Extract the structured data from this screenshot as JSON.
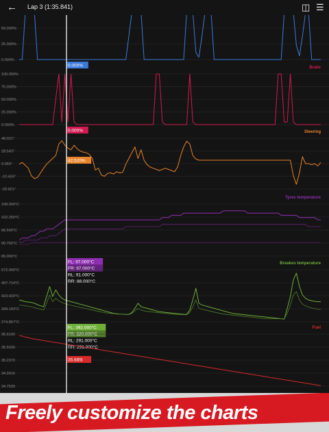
{
  "header": {
    "back_icon": "arrow-left-icon",
    "title": "Lap 3 (1:35.841)",
    "icons": [
      "car-compare-icon",
      "tune-icon"
    ]
  },
  "banner": {
    "text": "Freely customize the charts"
  },
  "colors": {
    "throttle": "#3b7ad8",
    "brake": "#d11a52",
    "steering": "#e8832a",
    "tyres": "#8e2fb0",
    "brakes_temp": "#6fae3a",
    "fuel": "#d62a2a"
  },
  "chart_data": [
    {
      "type": "line",
      "title": "",
      "series": [
        {
          "name": "",
          "values": [
            0,
            0,
            100,
            100,
            100,
            100,
            0,
            0,
            0,
            0,
            0,
            0,
            0,
            0,
            0,
            0,
            0,
            0,
            0,
            0,
            0,
            0,
            0,
            0,
            0,
            0,
            0,
            0,
            0,
            0,
            0,
            0,
            0,
            0,
            0,
            0,
            50,
            100,
            100,
            100,
            100,
            0,
            0,
            0,
            0,
            0,
            0,
            0,
            0,
            0,
            0,
            0,
            0,
            0,
            0,
            100,
            100,
            100,
            15,
            5,
            50,
            100,
            100,
            100,
            0,
            0,
            0,
            0,
            0,
            0,
            0,
            0,
            0,
            0,
            0,
            0,
            0,
            0,
            0,
            0,
            0,
            0,
            0,
            0,
            0,
            0,
            0,
            100,
            100,
            100,
            100,
            30,
            8,
            50,
            100,
            100,
            0,
            0,
            0,
            0
          ]
        }
      ],
      "ticks": [
        "75.000%",
        "50.000%",
        "25.000%",
        "0.000%"
      ],
      "ylim": [
        0,
        100
      ],
      "cursor_value": "0.000%"
    },
    {
      "type": "line",
      "title": "Brake",
      "series": [
        {
          "name": "",
          "values": [
            0,
            0,
            0,
            0,
            0,
            0,
            0,
            0,
            0,
            0,
            0,
            0,
            50,
            100,
            5,
            100,
            5,
            100,
            5,
            0,
            0,
            0,
            0,
            0,
            0,
            0,
            0,
            0,
            0,
            0,
            0,
            0,
            0,
            0,
            0,
            0,
            0,
            0,
            0,
            0,
            0,
            0,
            0,
            0,
            0,
            100,
            100,
            5,
            0,
            0,
            0,
            0,
            0,
            0,
            0,
            0,
            100,
            5,
            0,
            0,
            0,
            0,
            0,
            0,
            0,
            0,
            0,
            0,
            0,
            0,
            0,
            0,
            0,
            0,
            0,
            0,
            0,
            0,
            0,
            0,
            0,
            0,
            0,
            0,
            0,
            100,
            100,
            5,
            5,
            100,
            5,
            0,
            0,
            0,
            0,
            0,
            0,
            0,
            0,
            0
          ]
        }
      ],
      "ticks": [
        "100.000%",
        "75.000%",
        "50.000%",
        "25.000%",
        "0.000%"
      ],
      "ylim": [
        0,
        100
      ],
      "cursor_value": "0.000%"
    },
    {
      "type": "line",
      "title": "Steering",
      "series": [
        {
          "name": "",
          "values": [
            5,
            8,
            3,
            -2,
            -15,
            -20,
            -18,
            -10,
            -2,
            5,
            10,
            15,
            20,
            40,
            46,
            38,
            33,
            30,
            38,
            32,
            28,
            26,
            25,
            22,
            15,
            -5,
            -2,
            -14,
            -16,
            -11,
            -10,
            -12,
            -8,
            -10,
            -9,
            5,
            15,
            25,
            35,
            15,
            30,
            12,
            4,
            0,
            -2,
            -4,
            -6,
            -4,
            -2,
            -4,
            -6,
            -8,
            0,
            20,
            35,
            45,
            40,
            20,
            14,
            12,
            12,
            12,
            12,
            12,
            12,
            12,
            12,
            12,
            12,
            12,
            12,
            12,
            12,
            12,
            12,
            12,
            12,
            12,
            12,
            12,
            12,
            12,
            12,
            12,
            12,
            12,
            12,
            12,
            12,
            12,
            -15,
            -30,
            -10,
            18,
            6,
            6,
            4,
            6,
            2,
            8
          ]
        }
      ],
      "ticks": [
        "48.021°",
        "28.543°",
        "9.065°",
        "-10.433°",
        "-29.921°"
      ],
      "ylim": [
        -38,
        50
      ],
      "cursor_value": "42.520%"
    },
    {
      "type": "line",
      "title": "Tyres temperature",
      "series": [
        {
          "name": "FL",
          "values": [
            92,
            93,
            93,
            93,
            94,
            94,
            95,
            96,
            96,
            97,
            97,
            97,
            98,
            99,
            100,
            101,
            101,
            101,
            101,
            101,
            101,
            101,
            101,
            101,
            101,
            101,
            101,
            101,
            101,
            101,
            101,
            101,
            101,
            101,
            101,
            101,
            101,
            101,
            101,
            101,
            101,
            101,
            101,
            101,
            101,
            101,
            101,
            102,
            102,
            102,
            103,
            103,
            103,
            103,
            104,
            104,
            104,
            104,
            104,
            104,
            104,
            104,
            104,
            104,
            104,
            104,
            104,
            105,
            105,
            105,
            105,
            105,
            105,
            105,
            105,
            104,
            104,
            104,
            104,
            104,
            104,
            104,
            104,
            104,
            104,
            104,
            103,
            103,
            103,
            103,
            103,
            103,
            102,
            102,
            102,
            102,
            102,
            102,
            101,
            101
          ]
        },
        {
          "name": "FR",
          "values": [
            91,
            91,
            92,
            92,
            92,
            92,
            92,
            93,
            93,
            93,
            94,
            94,
            94,
            95,
            96,
            97,
            97,
            97,
            97,
            97,
            97,
            97,
            97,
            97,
            97,
            97,
            97,
            97,
            97,
            97,
            97,
            97,
            97,
            97,
            97,
            98,
            98,
            98,
            98,
            98,
            98,
            98,
            98,
            98,
            98,
            98,
            98,
            99,
            99,
            99,
            99,
            99,
            99,
            99,
            99,
            99,
            99,
            99,
            99,
            99,
            99,
            99,
            99,
            99,
            99,
            99,
            99,
            99,
            99,
            99,
            99,
            99,
            99,
            99,
            99,
            99,
            99,
            99,
            99,
            99,
            99,
            99,
            99,
            99,
            99,
            99,
            99,
            99,
            99,
            99,
            99,
            99,
            99,
            99,
            99,
            98,
            98,
            98,
            98,
            98
          ]
        },
        {
          "name": "RL",
          "values": [
            90,
            90,
            90,
            90,
            91,
            91,
            91,
            91,
            91,
            91,
            91,
            91,
            91,
            91,
            91,
            91,
            91,
            91,
            91,
            91,
            91,
            91,
            91,
            91,
            91,
            91,
            91,
            91,
            91,
            91,
            91,
            91,
            91,
            91,
            91,
            91,
            91,
            91,
            91,
            91,
            91,
            91,
            91,
            91,
            91,
            91,
            91,
            91,
            91,
            91,
            91,
            91,
            91,
            91,
            91,
            91,
            91,
            91,
            91,
            91,
            91,
            91,
            91,
            91,
            91,
            91,
            91,
            91,
            91,
            91,
            91,
            91,
            91,
            91,
            91,
            91,
            91,
            91,
            91,
            91,
            91,
            91,
            91,
            91,
            91,
            91,
            91,
            91,
            91,
            91,
            91,
            91,
            91,
            91,
            91,
            91,
            91,
            91,
            91,
            91
          ]
        }
      ],
      "ticks": [
        "108.000°C",
        "102.250°C",
        "96.500°C",
        "90.750°C",
        "85.000°C"
      ],
      "ylim": [
        85,
        108
      ],
      "cursor_values": [
        "FL: 97.000°C",
        "FR: 97.000°C",
        "RL: 91.000°C",
        "RR: 88.000°C"
      ]
    },
    {
      "type": "line",
      "title": "Breakes temperature",
      "series": [
        {
          "name": "FL",
          "values": [
            400,
            395,
            390,
            388,
            385,
            380,
            372,
            365,
            360,
            420,
            480,
            420,
            460,
            430,
            410,
            400,
            395,
            390,
            385,
            380,
            375,
            370,
            365,
            360,
            355,
            350,
            345,
            340,
            335,
            330,
            325,
            320,
            318,
            316,
            315,
            314,
            314,
            325,
            350,
            380,
            360,
            355,
            350,
            345,
            340,
            335,
            330,
            328,
            326,
            324,
            322,
            320,
            318,
            316,
            315,
            314,
            340,
            400,
            470,
            380,
            370,
            365,
            360,
            355,
            350,
            345,
            340,
            335,
            330,
            325,
            320,
            318,
            316,
            314,
            312,
            310,
            308,
            306,
            304,
            302,
            300,
            298,
            296,
            294,
            292,
            290,
            288,
            286,
            350,
            420,
            520,
            560,
            480,
            430,
            410,
            400,
            395,
            392,
            390,
            390
          ]
        },
        {
          "name": "FR",
          "values": [
            370,
            368,
            365,
            362,
            360,
            355,
            350,
            345,
            340,
            380,
            430,
            390,
            410,
            395,
            385,
            378,
            372,
            368,
            364,
            360,
            356,
            352,
            348,
            344,
            340,
            336,
            332,
            328,
            325,
            322,
            320,
            318,
            316,
            315,
            314,
            313,
            313,
            320,
            335,
            350,
            340,
            335,
            332,
            330,
            328,
            326,
            324,
            322,
            320,
            318,
            316,
            315,
            314,
            313,
            312,
            312,
            325,
            360,
            400,
            350,
            345,
            340,
            336,
            332,
            328,
            324,
            320,
            316,
            314,
            312,
            310,
            308,
            306,
            304,
            302,
            300,
            298,
            296,
            294,
            292,
            290,
            289,
            288,
            288,
            288,
            288,
            288,
            288,
            320,
            370,
            430,
            450,
            400,
            375,
            365,
            358,
            352,
            348,
            345,
            344
          ]
        }
      ],
      "ticks": [
        "572.000°C",
        "497.714°C",
        "423.429°C",
        "349.143°C",
        "274.857°C"
      ],
      "ylim": [
        270,
        580
      ],
      "cursor_values": [
        "FL: 392.000°C",
        "FR: 320.000°C",
        "RL: 291.000°C",
        "RR: 291.000°C"
      ]
    },
    {
      "type": "line",
      "title": "Fuel",
      "series": [
        {
          "name": "",
          "values": [
            35.67,
            35.66,
            35.64,
            35.63,
            35.61,
            35.6,
            35.59,
            35.58,
            35.57,
            35.56,
            35.55,
            35.54,
            35.53,
            35.52,
            35.51,
            35.5,
            35.49,
            35.48,
            35.47,
            35.46,
            35.45,
            35.44,
            35.43,
            35.42,
            35.41,
            35.4,
            35.39,
            35.38,
            35.37,
            35.36,
            35.35,
            35.34,
            35.33,
            35.32,
            35.31,
            35.3,
            35.29,
            35.28,
            35.27,
            35.26,
            35.25,
            35.24,
            35.23,
            35.22,
            35.21,
            35.2,
            35.19,
            35.18,
            35.17,
            35.16,
            35.15,
            35.14,
            35.13,
            35.12,
            35.11,
            35.1,
            35.09,
            35.08,
            35.07,
            35.06,
            35.05,
            35.04,
            35.03,
            35.02,
            35.01,
            35.0,
            34.99,
            34.98,
            34.97,
            34.96,
            34.95,
            34.94,
            34.93,
            34.92,
            34.91,
            34.9,
            34.89,
            34.88,
            34.87,
            34.86,
            34.85,
            34.84,
            34.83,
            34.82,
            34.81,
            34.8,
            34.79,
            34.78,
            34.77,
            34.76,
            34.75,
            34.74,
            34.73,
            34.72,
            34.71,
            34.7,
            34.69,
            34.68,
            34.67,
            34.66
          ]
        }
      ],
      "ticks": [
        "35.6100",
        "35.5030",
        "35.2370",
        "34.9910",
        "34.7530"
      ],
      "ylim": [
        34.65,
        35.7
      ],
      "cursor_value": "35.685l"
    }
  ]
}
